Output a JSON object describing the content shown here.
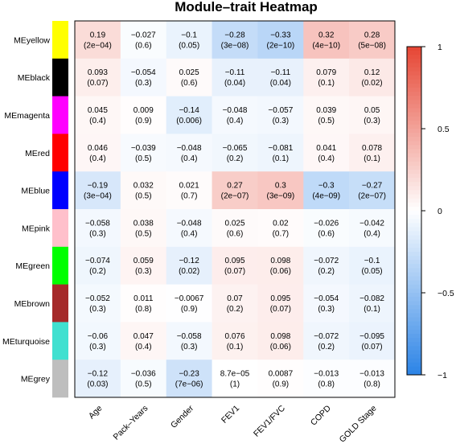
{
  "chart_data": {
    "type": "heatmap",
    "title": "Module–trait Heatmap",
    "rows": [
      "MEyellow",
      "MEblack",
      "MEmagenta",
      "MEred",
      "MEblue",
      "MEpink",
      "MEgreen",
      "MEbrown",
      "MEturquoise",
      "MEgrey"
    ],
    "row_colors": [
      "#ffff00",
      "#000000",
      "#ff00ff",
      "#ff0000",
      "#0000ff",
      "#ffc0cb",
      "#00ff00",
      "#a52a2a",
      "#40e0d0",
      "#bebebe"
    ],
    "columns": [
      "Age",
      "Pack–Years",
      "Gender",
      "FEV1",
      "FEV1/FVC",
      "COPD",
      "GOLD Stage"
    ],
    "values": [
      [
        0.19,
        -0.027,
        -0.1,
        -0.28,
        -0.33,
        0.32,
        0.28
      ],
      [
        0.093,
        -0.054,
        0.025,
        -0.11,
        -0.11,
        0.079,
        0.12
      ],
      [
        0.045,
        0.009,
        -0.14,
        -0.048,
        -0.057,
        0.039,
        0.05
      ],
      [
        0.046,
        -0.039,
        -0.048,
        -0.065,
        -0.081,
        0.041,
        0.078
      ],
      [
        -0.19,
        0.032,
        0.021,
        0.27,
        0.3,
        -0.3,
        -0.27
      ],
      [
        -0.058,
        0.038,
        -0.048,
        0.025,
        0.02,
        -0.026,
        -0.042
      ],
      [
        -0.074,
        0.059,
        -0.12,
        0.095,
        0.098,
        -0.072,
        -0.1
      ],
      [
        -0.052,
        0.011,
        -0.0067,
        0.07,
        0.095,
        -0.054,
        -0.082
      ],
      [
        -0.06,
        0.047,
        -0.058,
        0.076,
        0.098,
        -0.072,
        -0.095
      ],
      [
        -0.12,
        -0.036,
        -0.23,
        8.7e-05,
        0.0087,
        -0.013,
        -0.013
      ]
    ],
    "value_labels": [
      [
        "0.19",
        "−0.027",
        "−0.1",
        "−0.28",
        "−0.33",
        "0.32",
        "0.28"
      ],
      [
        "0.093",
        "−0.054",
        "0.025",
        "−0.11",
        "−0.11",
        "0.079",
        "0.12"
      ],
      [
        "0.045",
        "0.009",
        "−0.14",
        "−0.048",
        "−0.057",
        "0.039",
        "0.05"
      ],
      [
        "0.046",
        "−0.039",
        "−0.048",
        "−0.065",
        "−0.081",
        "0.041",
        "0.078"
      ],
      [
        "−0.19",
        "0.032",
        "0.021",
        "0.27",
        "0.3",
        "−0.3",
        "−0.27"
      ],
      [
        "−0.058",
        "0.038",
        "−0.048",
        "0.025",
        "0.02",
        "−0.026",
        "−0.042"
      ],
      [
        "−0.074",
        "0.059",
        "−0.12",
        "0.095",
        "0.098",
        "−0.072",
        "−0.1"
      ],
      [
        "−0.052",
        "0.011",
        "−0.0067",
        "0.07",
        "0.095",
        "−0.054",
        "−0.082"
      ],
      [
        "−0.06",
        "0.047",
        "−0.058",
        "0.076",
        "0.098",
        "−0.072",
        "−0.095"
      ],
      [
        "−0.12",
        "−0.036",
        "−0.23",
        "8.7e−05",
        "0.0087",
        "−0.013",
        "−0.013"
      ]
    ],
    "pvalue_labels": [
      [
        "(2e−04)",
        "(0.6)",
        "(0.05)",
        "(3e−08)",
        "(2e−10)",
        "(4e−10)",
        "(5e−08)"
      ],
      [
        "(0.07)",
        "(0.3)",
        "(0.6)",
        "(0.04)",
        "(0.04)",
        "(0.1)",
        "(0.02)"
      ],
      [
        "(0.4)",
        "(0.9)",
        "(0.006)",
        "(0.4)",
        "(0.3)",
        "(0.5)",
        "(0.3)"
      ],
      [
        "(0.4)",
        "(0.5)",
        "(0.4)",
        "(0.2)",
        "(0.1)",
        "(0.4)",
        "(0.1)"
      ],
      [
        "(3e−04)",
        "(0.5)",
        "(0.7)",
        "(2e−07)",
        "(3e−09)",
        "(4e−09)",
        "(2e−07)"
      ],
      [
        "(0.3)",
        "(0.5)",
        "(0.4)",
        "(0.6)",
        "(0.7)",
        "(0.6)",
        "(0.4)"
      ],
      [
        "(0.2)",
        "(0.3)",
        "(0.02)",
        "(0.07)",
        "(0.06)",
        "(0.2)",
        "(0.05)"
      ],
      [
        "(0.3)",
        "(0.8)",
        "(0.9)",
        "(0.2)",
        "(0.07)",
        "(0.3)",
        "(0.1)"
      ],
      [
        "(0.3)",
        "(0.4)",
        "(0.3)",
        "(0.1)",
        "(0.06)",
        "(0.2)",
        "(0.07)"
      ],
      [
        "(0.03)",
        "(0.5)",
        "(7e−06)",
        "(1)",
        "(0.9)",
        "(0.8)",
        "(0.8)"
      ]
    ],
    "colorbar": {
      "range": [
        -1,
        1
      ],
      "ticks": [
        1,
        0.5,
        0,
        -0.5,
        -1
      ],
      "tick_labels": [
        "1",
        "0.5",
        "0",
        "−0.5",
        "−1"
      ],
      "colors": {
        "low": "#2b83e6",
        "mid": "#ffffff",
        "high": "#e64533"
      }
    }
  }
}
